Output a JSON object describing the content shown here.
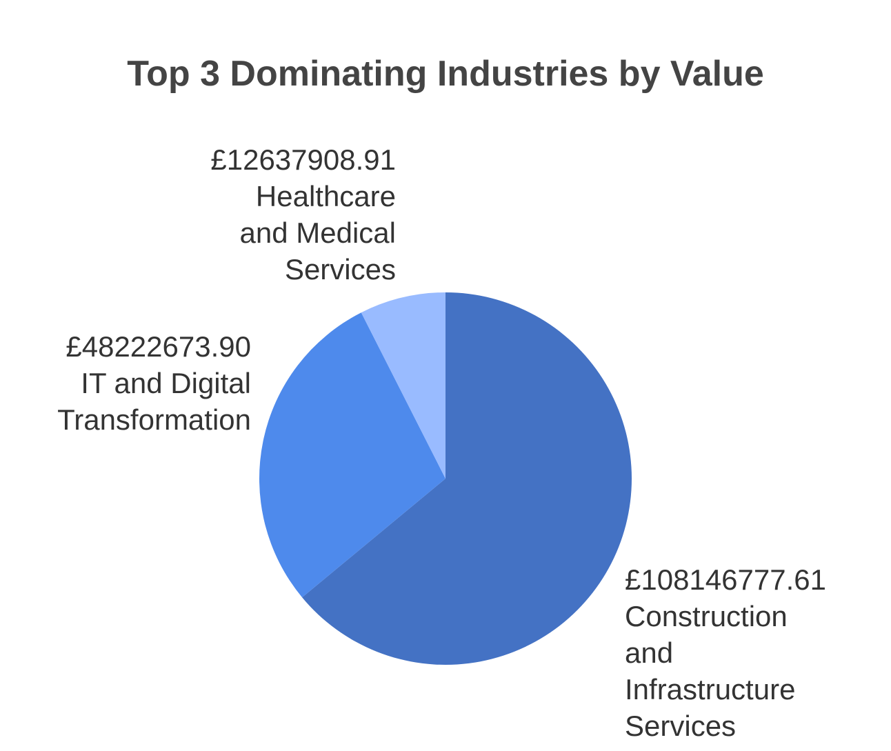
{
  "chart_data": {
    "type": "pie",
    "title": "Top 3 Dominating Industries by Value",
    "slices": [
      {
        "value_label": "£108146777.61",
        "value": 108146777.61,
        "name_lines": [
          "Construction",
          "and",
          "Infrastructure",
          "Services"
        ],
        "color": "#4472C4"
      },
      {
        "value_label": "£48222673.90",
        "value": 48222673.9,
        "name_lines": [
          "IT and Digital",
          "Transformation"
        ],
        "color": "#4E8AEC"
      },
      {
        "value_label": "£12637908.91",
        "value": 12637908.91,
        "name_lines": [
          "Healthcare",
          "and Medical",
          "Services"
        ],
        "color": "#99BBFF"
      }
    ]
  }
}
